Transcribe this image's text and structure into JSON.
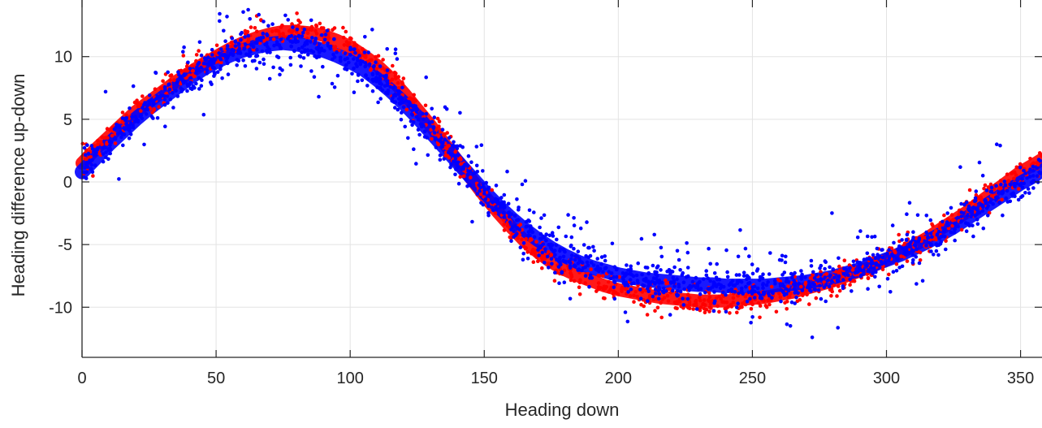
{
  "chart_data": {
    "type": "scatter",
    "title": "",
    "xlabel": "Heading down",
    "ylabel": "Heading difference up-down",
    "xlim": [
      0,
      358
    ],
    "ylim": [
      -14,
      14
    ],
    "xticks": [
      0,
      50,
      100,
      150,
      200,
      250,
      300,
      350
    ],
    "yticks": [
      -10,
      -5,
      0,
      5,
      10
    ],
    "grid": true,
    "legend": "none",
    "series": [
      {
        "color": "#ff0000",
        "points": [
          [
            0,
            1.5
          ],
          [
            5,
            2.6
          ],
          [
            10,
            3.6
          ],
          [
            15,
            4.6
          ],
          [
            20,
            5.6
          ],
          [
            25,
            6.4
          ],
          [
            30,
            7.2
          ],
          [
            35,
            8.0
          ],
          [
            40,
            8.7
          ],
          [
            45,
            9.4
          ],
          [
            50,
            10.0
          ],
          [
            55,
            10.6
          ],
          [
            60,
            11.1
          ],
          [
            65,
            11.5
          ],
          [
            70,
            11.8
          ],
          [
            75,
            12.0
          ],
          [
            80,
            12.0
          ],
          [
            85,
            11.9
          ],
          [
            90,
            11.7
          ],
          [
            95,
            11.3
          ],
          [
            100,
            10.8
          ],
          [
            105,
            10.1
          ],
          [
            110,
            9.3
          ],
          [
            115,
            8.3
          ],
          [
            120,
            7.1
          ],
          [
            125,
            5.8
          ],
          [
            130,
            4.5
          ],
          [
            135,
            3.1
          ],
          [
            140,
            1.7
          ],
          [
            145,
            0.3
          ],
          [
            150,
            -1.1
          ],
          [
            155,
            -2.4
          ],
          [
            160,
            -3.6
          ],
          [
            165,
            -4.7
          ],
          [
            170,
            -5.6
          ],
          [
            175,
            -6.4
          ],
          [
            180,
            -7.0
          ],
          [
            185,
            -7.5
          ],
          [
            190,
            -7.9
          ],
          [
            195,
            -8.3
          ],
          [
            200,
            -8.6
          ],
          [
            205,
            -8.8
          ],
          [
            210,
            -9.0
          ],
          [
            215,
            -9.2
          ],
          [
            220,
            -9.3
          ],
          [
            225,
            -9.4
          ],
          [
            230,
            -9.5
          ],
          [
            235,
            -9.5
          ],
          [
            240,
            -9.5
          ],
          [
            245,
            -9.4
          ],
          [
            250,
            -9.3
          ],
          [
            255,
            -9.2
          ],
          [
            260,
            -9.0
          ],
          [
            265,
            -8.8
          ],
          [
            270,
            -8.5
          ],
          [
            275,
            -8.2
          ],
          [
            280,
            -7.9
          ],
          [
            285,
            -7.5
          ],
          [
            290,
            -7.1
          ],
          [
            295,
            -6.7
          ],
          [
            300,
            -6.2
          ],
          [
            305,
            -5.7
          ],
          [
            310,
            -5.1
          ],
          [
            315,
            -4.5
          ],
          [
            320,
            -3.8
          ],
          [
            325,
            -3.1
          ],
          [
            330,
            -2.4
          ],
          [
            335,
            -1.6
          ],
          [
            340,
            -0.8
          ],
          [
            345,
            0.0
          ],
          [
            350,
            0.8
          ],
          [
            355,
            1.4
          ],
          [
            358,
            1.8
          ]
        ]
      },
      {
        "color": "#0000ff",
        "points": [
          [
            0,
            0.8
          ],
          [
            5,
            1.9
          ],
          [
            10,
            3.0
          ],
          [
            15,
            4.0
          ],
          [
            20,
            5.0
          ],
          [
            25,
            5.9
          ],
          [
            30,
            6.7
          ],
          [
            35,
            7.5
          ],
          [
            40,
            8.3
          ],
          [
            45,
            9.0
          ],
          [
            50,
            9.6
          ],
          [
            55,
            10.1
          ],
          [
            60,
            10.5
          ],
          [
            65,
            10.8
          ],
          [
            70,
            11.0
          ],
          [
            75,
            11.1
          ],
          [
            80,
            11.0
          ],
          [
            85,
            10.8
          ],
          [
            90,
            10.5
          ],
          [
            95,
            10.1
          ],
          [
            100,
            9.6
          ],
          [
            105,
            9.0
          ],
          [
            110,
            8.2
          ],
          [
            115,
            7.3
          ],
          [
            120,
            6.3
          ],
          [
            125,
            5.2
          ],
          [
            130,
            4.0
          ],
          [
            135,
            2.8
          ],
          [
            140,
            1.6
          ],
          [
            145,
            0.4
          ],
          [
            150,
            -0.8
          ],
          [
            155,
            -1.9
          ],
          [
            160,
            -2.9
          ],
          [
            165,
            -3.8
          ],
          [
            170,
            -4.6
          ],
          [
            175,
            -5.3
          ],
          [
            180,
            -5.9
          ],
          [
            185,
            -6.4
          ],
          [
            190,
            -6.8
          ],
          [
            195,
            -7.1
          ],
          [
            200,
            -7.4
          ],
          [
            205,
            -7.6
          ],
          [
            210,
            -7.8
          ],
          [
            215,
            -7.9
          ],
          [
            220,
            -8.0
          ],
          [
            225,
            -8.1
          ],
          [
            230,
            -8.2
          ],
          [
            235,
            -8.2
          ],
          [
            240,
            -8.3
          ],
          [
            245,
            -8.3
          ],
          [
            250,
            -8.3
          ],
          [
            255,
            -8.3
          ],
          [
            260,
            -8.2
          ],
          [
            265,
            -8.1
          ],
          [
            270,
            -8.0
          ],
          [
            275,
            -7.8
          ],
          [
            280,
            -7.6
          ],
          [
            285,
            -7.3
          ],
          [
            290,
            -7.0
          ],
          [
            295,
            -6.6
          ],
          [
            300,
            -6.2
          ],
          [
            305,
            -5.8
          ],
          [
            310,
            -5.3
          ],
          [
            315,
            -4.8
          ],
          [
            320,
            -4.2
          ],
          [
            325,
            -3.6
          ],
          [
            330,
            -2.9
          ],
          [
            335,
            -2.2
          ],
          [
            340,
            -1.5
          ],
          [
            345,
            -0.8
          ],
          [
            350,
            -0.1
          ],
          [
            355,
            0.5
          ],
          [
            358,
            1.0
          ]
        ]
      }
    ]
  }
}
